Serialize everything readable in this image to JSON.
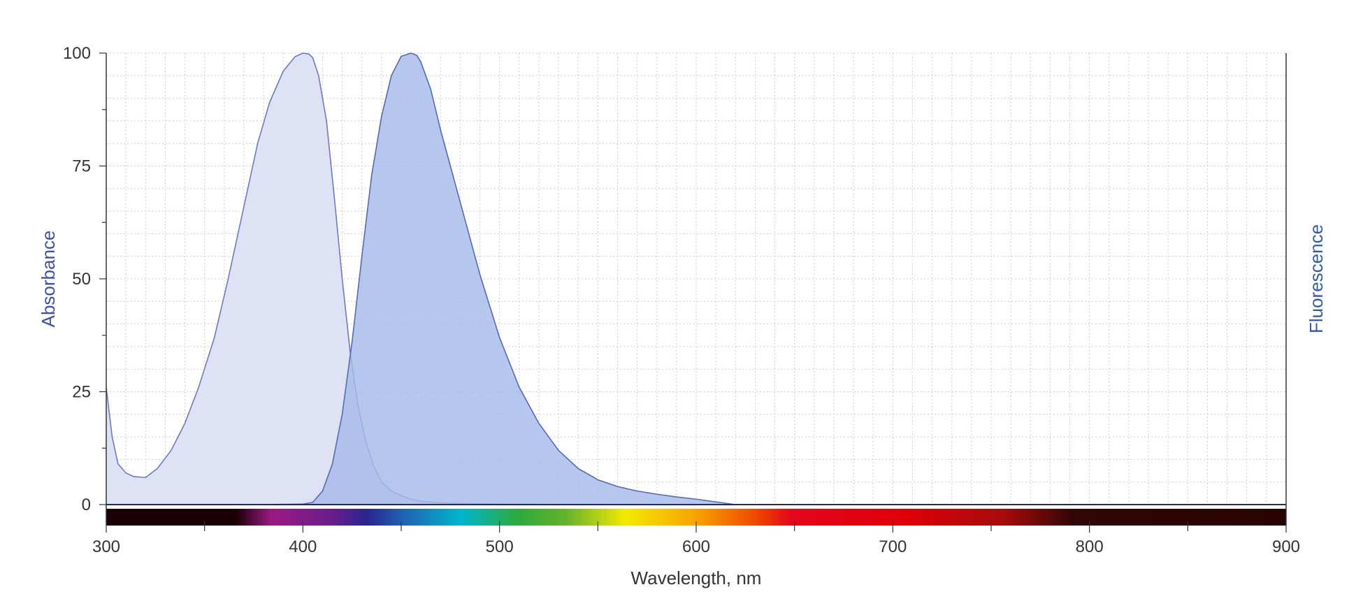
{
  "chart_data": {
    "type": "area",
    "title": "",
    "xlabel": "Wavelength, nm",
    "ylabel": "Absorbance",
    "y2label": "Fluorescence",
    "xlim": [
      300,
      900
    ],
    "ylim": [
      0,
      100
    ],
    "x_ticks": [
      300,
      400,
      500,
      600,
      700,
      800,
      900
    ],
    "y_ticks": [
      0,
      25,
      50,
      75,
      100
    ],
    "grid": true,
    "legend": "none",
    "spectrum_bar": true,
    "colors": {
      "absorbance_fill": "#dfe2f5",
      "absorbance_line": "#6f78c4",
      "fluorescence_fill": "#a6bbe9",
      "fluorescence_line": "#5668b8",
      "ylabel": "#3d4fa8",
      "y2label": "#2f56b8",
      "grid": "#cccccc",
      "axis": "#333333"
    },
    "series": [
      {
        "x": [
          300,
          303,
          306,
          310,
          314,
          320,
          326,
          333,
          340,
          347,
          355,
          362,
          370,
          377,
          383,
          390,
          396,
          400,
          403,
          405,
          408,
          412,
          416,
          420,
          424,
          428,
          432,
          436,
          440,
          445,
          450,
          455,
          460,
          470,
          480,
          500,
          520,
          540
        ],
        "y": [
          26,
          15,
          9,
          7,
          6.2,
          6,
          8,
          12,
          18,
          26,
          37,
          50,
          66,
          80,
          89,
          96,
          99.2,
          100,
          99.8,
          99,
          95,
          85,
          68,
          50,
          34,
          22,
          14,
          8.5,
          5,
          3,
          2,
          1.2,
          0.7,
          0.4,
          0.25,
          0.1,
          0.05,
          0
        ]
      },
      {
        "x": [
          300,
          380,
          400,
          405,
          410,
          415,
          420,
          425,
          430,
          435,
          440,
          445,
          450,
          455,
          458,
          460,
          465,
          470,
          475,
          480,
          485,
          490,
          500,
          510,
          520,
          530,
          540,
          550,
          560,
          570,
          580,
          590,
          600,
          610,
          620
        ],
        "y": [
          0,
          0,
          0.1,
          0.5,
          3,
          9,
          20,
          36,
          55,
          73,
          86,
          95,
          99.3,
          100,
          99.5,
          98,
          92,
          83,
          75,
          67,
          59,
          51,
          37,
          26,
          18,
          12,
          8,
          5.5,
          4,
          3,
          2.3,
          1.7,
          1.2,
          0.6,
          0
        ]
      }
    ]
  }
}
